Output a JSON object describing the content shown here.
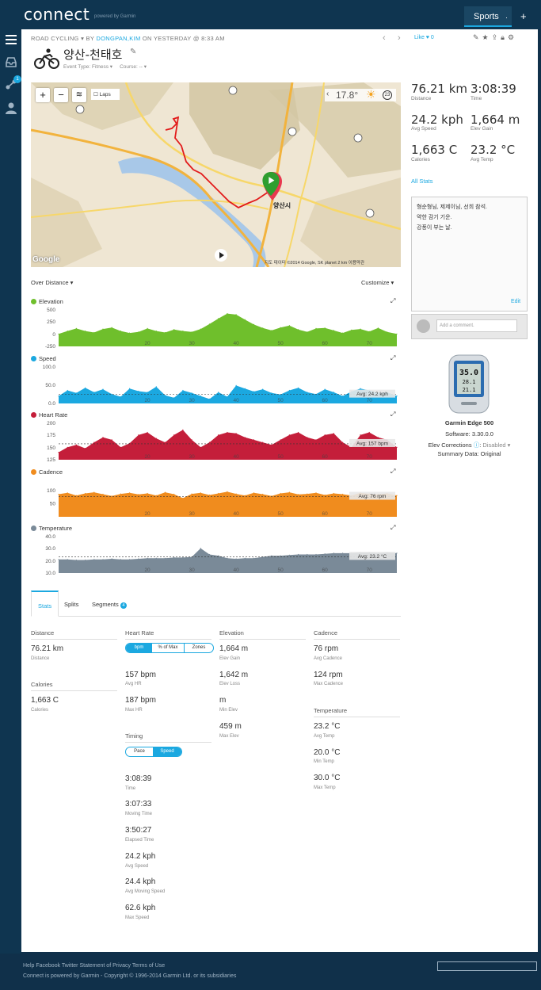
{
  "header": {
    "logo": "connect",
    "logo_sub": "powered by Garmin",
    "sports_tab": "Sports",
    "plus": "+"
  },
  "nav": {
    "badge_count": "1"
  },
  "activity": {
    "category": "ROAD CYCLING",
    "by_label": "BY",
    "user": "DONGPAN,KIM",
    "when": "ON YESTERDAY @ 8:33 AM",
    "like_label": "Like",
    "like_count": "0",
    "title": "양산-천태호",
    "event_type": "Event Type: Fitness",
    "course": "Course: --"
  },
  "map": {
    "laps_label": "Laps",
    "temperature": "17.8°",
    "wind": "23",
    "attribution": "지도 데이터 ©2014 Google, SK planet   2 km       이용약관",
    "google": "Google",
    "labels": [
      {
        "text": "양산시"
      }
    ]
  },
  "summary": [
    {
      "value": "76.21 km",
      "label": "Distance"
    },
    {
      "value": "3:08:39",
      "label": "Time"
    },
    {
      "value": "24.2 kph",
      "label": "Avg Speed"
    },
    {
      "value": "1,664 m",
      "label": "Elev Gain"
    },
    {
      "value": "1,663 C",
      "label": "Calories"
    },
    {
      "value": "23.2 °C",
      "label": "Avg Temp"
    }
  ],
  "all_stats": "All Stats",
  "notes": {
    "lines": [
      "형순형님, 제제이님, 선희 참석.",
      "약한 감기 기운.",
      "강풍이 부는 날."
    ],
    "edit": "Edit"
  },
  "comment_placeholder": "Add a comment.",
  "device": {
    "name": "Garmin Edge 500",
    "software": "Software: 3.30.0.0",
    "elev_corrections": "Elev Corrections",
    "elev_status": "Disabled",
    "summary_data": "Summary Data: Original",
    "screen": [
      "35.0",
      "28.1",
      "21.1"
    ]
  },
  "charts_header": {
    "over_distance": "Over Distance",
    "customize": "Customize"
  },
  "chart_data": [
    {
      "type": "area",
      "title": "Elevation",
      "color": "#6fbf2c",
      "yticks": [
        "500",
        "250",
        "0",
        "-250"
      ],
      "ylim": [
        -250,
        500
      ],
      "xticks": [
        "20",
        "30",
        "40",
        "50",
        "60",
        "70"
      ],
      "xlim": [
        0,
        76.21
      ],
      "x": [
        0,
        2,
        4,
        6,
        8,
        10,
        12,
        14,
        16,
        18,
        20,
        22,
        24,
        26,
        28,
        30,
        32,
        34,
        36,
        38,
        40,
        42,
        44,
        46,
        48,
        50,
        52,
        54,
        56,
        58,
        60,
        62,
        64,
        66,
        68,
        70,
        72,
        74,
        76.21
      ],
      "values": [
        0,
        60,
        110,
        60,
        30,
        100,
        130,
        60,
        20,
        40,
        110,
        60,
        30,
        90,
        60,
        40,
        100,
        200,
        310,
        410,
        390,
        290,
        190,
        120,
        70,
        130,
        170,
        90,
        40,
        110,
        120,
        70,
        20,
        80,
        100,
        50,
        120,
        40,
        0
      ]
    },
    {
      "type": "area",
      "title": "Speed",
      "color": "#1ba8e0",
      "yticks": [
        "100.0",
        "50.0",
        "0.0"
      ],
      "ylim": [
        0,
        100
      ],
      "xticks": [
        "20",
        "30",
        "40",
        "50",
        "60",
        "70"
      ],
      "xlim": [
        0,
        76.21
      ],
      "avg_label": "Avg: 24.2 kph",
      "avg": 24.2,
      "x": [
        0,
        2,
        4,
        6,
        8,
        10,
        12,
        14,
        16,
        18,
        20,
        22,
        24,
        26,
        28,
        30,
        32,
        34,
        36,
        38,
        40,
        42,
        44,
        46,
        48,
        50,
        52,
        54,
        56,
        58,
        60,
        62,
        64,
        66,
        68,
        70,
        72,
        74,
        76.21
      ],
      "values": [
        20,
        35,
        28,
        42,
        30,
        38,
        25,
        18,
        40,
        33,
        30,
        45,
        22,
        15,
        35,
        28,
        20,
        12,
        30,
        18,
        48,
        40,
        32,
        38,
        28,
        24,
        35,
        42,
        30,
        25,
        38,
        30,
        20,
        32,
        40,
        35,
        28,
        30,
        20
      ]
    },
    {
      "type": "area",
      "title": "Heart Rate",
      "color": "#c41e3a",
      "yticks": [
        "200",
        "175",
        "150",
        "125"
      ],
      "ylim": [
        125,
        200
      ],
      "xticks": [
        "20",
        "30",
        "40",
        "50",
        "60",
        "70"
      ],
      "xlim": [
        0,
        76.21
      ],
      "avg_label": "Avg: 157 bpm",
      "avg": 157,
      "x": [
        0,
        2,
        4,
        6,
        8,
        10,
        12,
        14,
        16,
        18,
        20,
        22,
        24,
        26,
        28,
        30,
        32,
        34,
        36,
        38,
        40,
        42,
        44,
        46,
        48,
        50,
        52,
        54,
        56,
        58,
        60,
        62,
        64,
        66,
        68,
        70,
        72,
        74,
        76.21
      ],
      "values": [
        140,
        150,
        155,
        148,
        160,
        170,
        165,
        150,
        158,
        175,
        180,
        168,
        160,
        175,
        185,
        165,
        150,
        160,
        175,
        180,
        178,
        170,
        165,
        160,
        155,
        165,
        175,
        180,
        170,
        165,
        175,
        178,
        160,
        150,
        175,
        180,
        170,
        165,
        150
      ]
    },
    {
      "type": "area",
      "title": "Cadence",
      "color": "#f08c1e",
      "yticks": [
        "100",
        "50"
      ],
      "ylim": [
        0,
        140
      ],
      "xticks": [
        "20",
        "30",
        "40",
        "50",
        "60",
        "70"
      ],
      "xlim": [
        0,
        76.21
      ],
      "avg_label": "Avg: 76 rpm",
      "avg": 76,
      "x": [
        0,
        2,
        4,
        6,
        8,
        10,
        12,
        14,
        16,
        18,
        20,
        22,
        24,
        26,
        28,
        30,
        32,
        34,
        36,
        38,
        40,
        42,
        44,
        46,
        48,
        50,
        52,
        54,
        56,
        58,
        60,
        62,
        64,
        66,
        68,
        70,
        72,
        74,
        76.21
      ],
      "values": [
        85,
        90,
        80,
        88,
        92,
        85,
        78,
        86,
        90,
        84,
        88,
        80,
        92,
        85,
        70,
        86,
        90,
        82,
        88,
        94,
        86,
        80,
        90,
        85,
        78,
        88,
        92,
        84,
        86,
        90,
        82,
        88,
        85,
        80,
        90,
        86,
        84,
        88,
        80
      ]
    },
    {
      "type": "area",
      "title": "Temperature",
      "color": "#7a8a98",
      "yticks": [
        "40.0",
        "30.0",
        "20.0",
        "10.0"
      ],
      "ylim": [
        10,
        40
      ],
      "xticks": [
        "20",
        "30",
        "40",
        "50",
        "60",
        "70"
      ],
      "xlim": [
        0,
        76.21
      ],
      "avg_label": "Avg: 23.2 °C",
      "avg": 23.2,
      "x": [
        0,
        2,
        4,
        6,
        8,
        10,
        12,
        14,
        16,
        18,
        20,
        22,
        24,
        26,
        28,
        30,
        32,
        34,
        36,
        38,
        40,
        42,
        44,
        46,
        48,
        50,
        52,
        54,
        56,
        58,
        60,
        62,
        64,
        66,
        68,
        70,
        72,
        74,
        76.21
      ],
      "values": [
        21,
        21,
        20.5,
        20.5,
        21,
        21,
        21.5,
        21,
        21,
        21.5,
        22,
        22,
        22,
        22.5,
        22.5,
        23,
        30,
        25,
        24,
        22,
        21.5,
        22,
        22,
        23,
        24,
        24,
        24.5,
        25,
        25,
        25,
        25.5,
        26,
        26,
        26,
        26.5,
        26.5,
        26,
        26.5,
        26
      ]
    }
  ],
  "tabs": [
    "Stats",
    "Splits",
    "Segments"
  ],
  "segments_count": "4",
  "stats": {
    "distance": {
      "head": "Distance",
      "value": "76.21 km",
      "label": "Distance"
    },
    "calories": {
      "head": "Calories",
      "value": "1,663 C",
      "label": "Calories"
    },
    "heart_rate": {
      "head": "Heart Rate",
      "toggle": [
        "bpm",
        "% of Max",
        "Zones"
      ],
      "items": [
        {
          "value": "157 bpm",
          "label": "Avg HR"
        },
        {
          "value": "187 bpm",
          "label": "Max HR"
        }
      ]
    },
    "timing": {
      "head": "Timing",
      "toggle": [
        "Pace",
        "Speed"
      ],
      "items": [
        {
          "value": "3:08:39",
          "label": "Time"
        },
        {
          "value": "3:07:33",
          "label": "Moving Time"
        },
        {
          "value": "3:50:27",
          "label": "Elapsed Time"
        },
        {
          "value": "24.2 kph",
          "label": "Avg Speed"
        },
        {
          "value": "24.4 kph",
          "label": "Avg Moving Speed"
        },
        {
          "value": "62.6 kph",
          "label": "Max Speed"
        }
      ]
    },
    "elevation": {
      "head": "Elevation",
      "items": [
        {
          "value": "1,664 m",
          "label": "Elev Gain"
        },
        {
          "value": "1,642 m",
          "label": "Elev Loss"
        },
        {
          "value": "m",
          "label": "Min Elev"
        },
        {
          "value": "459 m",
          "label": "Max Elev"
        }
      ]
    },
    "cadence": {
      "head": "Cadence",
      "items": [
        {
          "value": "76 rpm",
          "label": "Avg Cadence"
        },
        {
          "value": "124 rpm",
          "label": "Max Cadence"
        }
      ]
    },
    "temperature": {
      "head": "Temperature",
      "items": [
        {
          "value": "23.2 °C",
          "label": "Avg Temp"
        },
        {
          "value": "20.0 °C",
          "label": "Min Temp"
        },
        {
          "value": "30.0 °C",
          "label": "Max Temp"
        }
      ]
    }
  },
  "footer": {
    "links": "Help Facebook Twitter Statement of Privacy Terms of Use",
    "copyright": "Connect is powered by Garmin - Copyright © 1996-2014 Garmin Ltd. or its subsidiaries"
  }
}
